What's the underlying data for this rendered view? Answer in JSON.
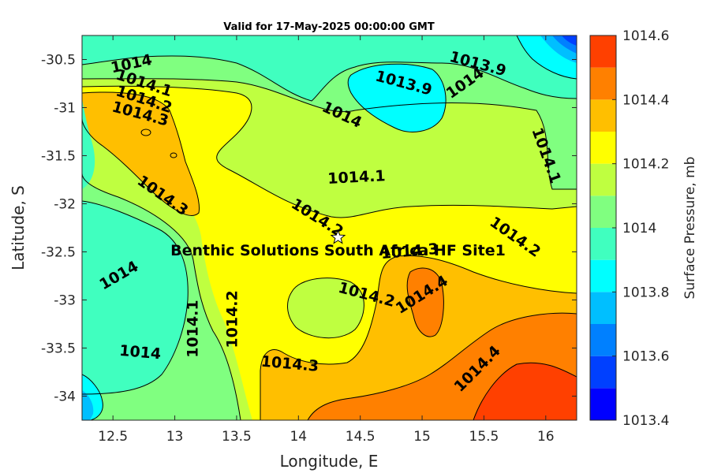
{
  "chart_data": {
    "type": "heatmap",
    "title": "Valid for 17-May-2025 00:00:00 GMT",
    "xlabel": "Longitude, E",
    "ylabel": "Latitude, S",
    "colorbar_label": "Surface Pressure, mb",
    "xlim": [
      12.25,
      16.25
    ],
    "ylim": [
      -34.25,
      -30.25
    ],
    "x_ticks": [
      "12.5",
      "13",
      "13.5",
      "14",
      "14.5",
      "15",
      "15.5",
      "16"
    ],
    "x_tick_values": [
      12.5,
      13,
      13.5,
      14,
      14.5,
      15,
      15.5,
      16
    ],
    "y_ticks": [
      "-30.5",
      "-31",
      "-31.5",
      "-32",
      "-32.5",
      "-33",
      "-33.5",
      "-34"
    ],
    "y_tick_values": [
      -30.5,
      -31,
      -31.5,
      -32,
      -32.5,
      -33,
      -33.5,
      -34
    ],
    "colorbar": {
      "range": [
        1013.4,
        1014.6
      ],
      "ticks": [
        "1013.4",
        "1013.6",
        "1013.8",
        "1014",
        "1014.2",
        "1014.4",
        "1014.6"
      ],
      "tick_values": [
        1013.4,
        1013.6,
        1013.8,
        1014.0,
        1014.2,
        1014.4,
        1014.6
      ],
      "levels": [
        1013.4,
        1013.5,
        1013.6,
        1013.7,
        1013.8,
        1013.9,
        1014.0,
        1014.1,
        1014.2,
        1014.3,
        1014.4,
        1014.5,
        1014.6
      ],
      "colors": [
        "#0000ff",
        "#0040ff",
        "#0080ff",
        "#00bfff",
        "#00ffff",
        "#40ffbf",
        "#80ff80",
        "#bfff40",
        "#ffff00",
        "#ffbf00",
        "#ff8000",
        "#ff4000"
      ]
    },
    "contour_labels": [
      {
        "text": "1014",
        "lon": 12.65,
        "lat": -30.55,
        "angle": -12
      },
      {
        "text": "1014.1",
        "lon": 12.75,
        "lat": -30.75,
        "angle": 18
      },
      {
        "text": "1014.2",
        "lon": 12.75,
        "lat": -30.92,
        "angle": 18
      },
      {
        "text": "1014.3",
        "lon": 12.72,
        "lat": -31.07,
        "angle": 15
      },
      {
        "text": "1013.9",
        "lon": 15.45,
        "lat": -30.55,
        "angle": 15
      },
      {
        "text": "1013.9",
        "lon": 14.85,
        "lat": -30.75,
        "angle": 15
      },
      {
        "text": "1014",
        "lon": 15.35,
        "lat": -30.75,
        "angle": -35
      },
      {
        "text": "1014",
        "lon": 14.35,
        "lat": -31.08,
        "angle": 25
      },
      {
        "text": "1014.1",
        "lon": 16.0,
        "lat": -31.5,
        "angle": 70
      },
      {
        "text": "1014.1",
        "lon": 14.47,
        "lat": -31.73,
        "angle": -3
      },
      {
        "text": "1014.3",
        "lon": 12.9,
        "lat": -31.92,
        "angle": 35
      },
      {
        "text": "1014.2",
        "lon": 14.15,
        "lat": -32.15,
        "angle": 32
      },
      {
        "text": "1014.2",
        "lon": 15.75,
        "lat": -32.35,
        "angle": 35
      },
      {
        "text": "1014.3",
        "lon": 14.9,
        "lat": -32.5,
        "angle": -5
      },
      {
        "text": "1014",
        "lon": 12.55,
        "lat": -32.75,
        "angle": -30
      },
      {
        "text": "1014.2",
        "lon": 14.55,
        "lat": -32.95,
        "angle": 15
      },
      {
        "text": "1014.4",
        "lon": 15.0,
        "lat": -32.95,
        "angle": -32
      },
      {
        "text": "1014.1",
        "lon": 13.15,
        "lat": -33.3,
        "angle": -90
      },
      {
        "text": "1014.2",
        "lon": 13.47,
        "lat": -33.2,
        "angle": -90
      },
      {
        "text": "1014",
        "lon": 12.72,
        "lat": -33.55,
        "angle": 5
      },
      {
        "text": "1014.3",
        "lon": 13.93,
        "lat": -33.67,
        "angle": 5
      },
      {
        "text": "1014.4",
        "lon": 15.45,
        "lat": -33.72,
        "angle": -45
      }
    ],
    "site": {
      "name": "Benthic Solutions South Africa HF Site1",
      "lon": 14.32,
      "lat": -32.35
    }
  }
}
